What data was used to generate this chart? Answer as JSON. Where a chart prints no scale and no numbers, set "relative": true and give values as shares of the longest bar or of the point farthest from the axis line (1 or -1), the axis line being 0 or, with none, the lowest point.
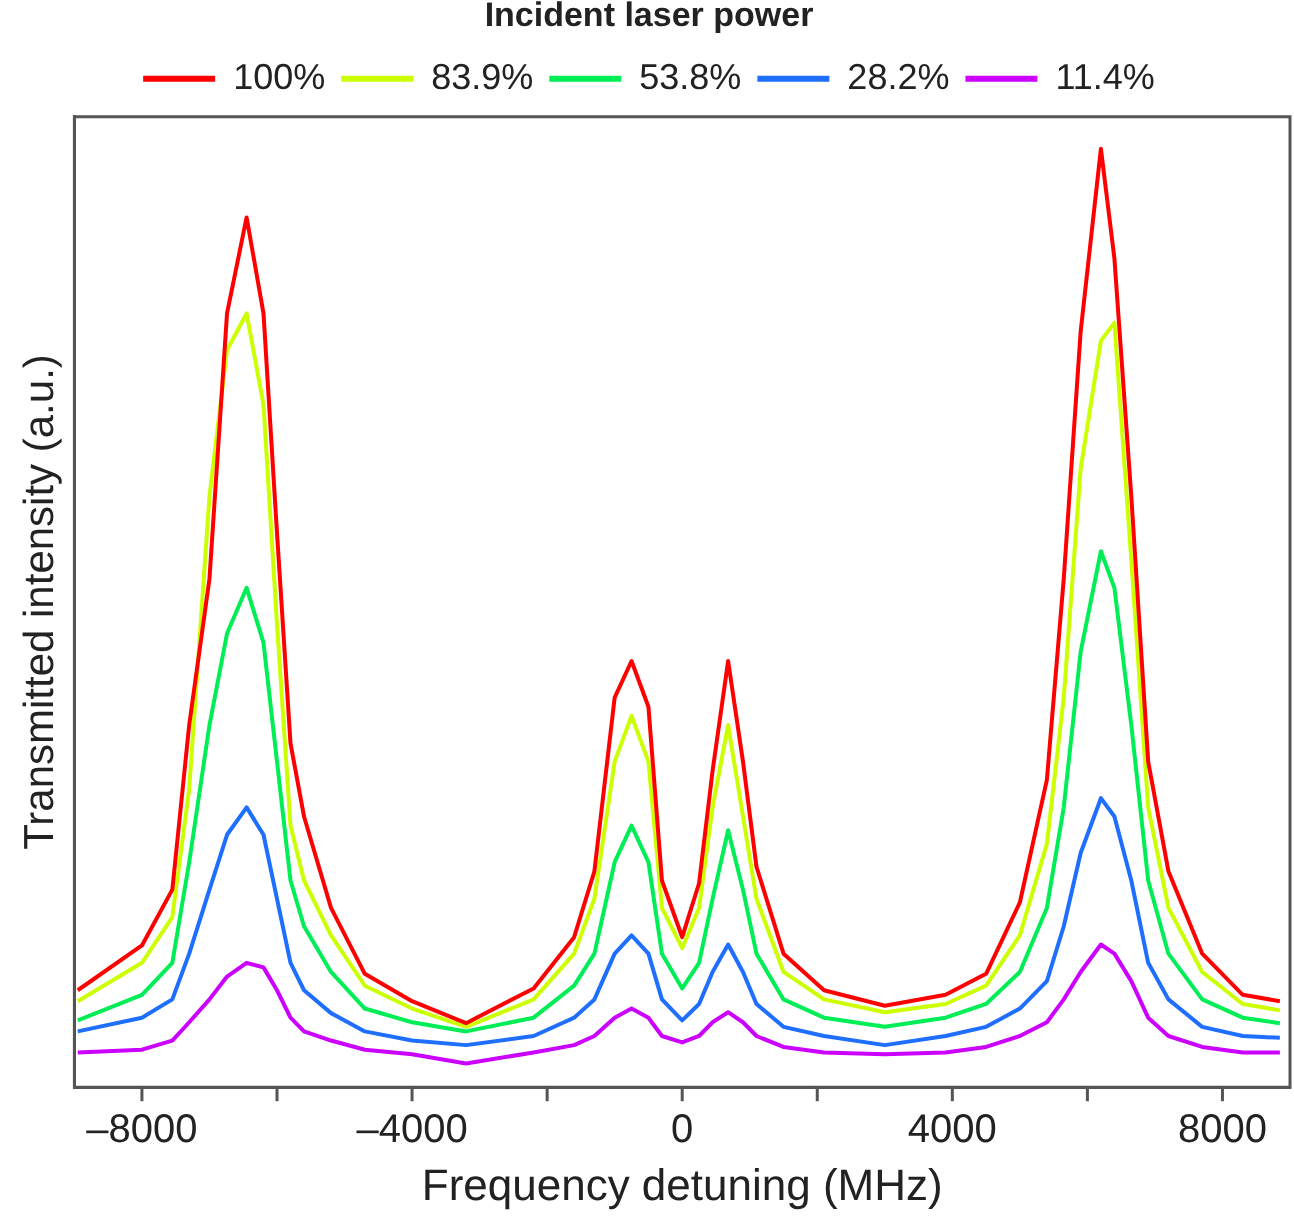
{
  "chart_data": {
    "type": "line",
    "legend_title": "Incident laser power",
    "xlabel": "Frequency detuning (MHz)",
    "ylabel": "Transmitted intensity (a.u.)",
    "relative": true,
    "legend": "top",
    "grid": false,
    "marker": "none",
    "line_style": "solid",
    "xlim": [
      -9000,
      9000
    ],
    "xticks": [
      {
        "value": -8000,
        "label": "–8000"
      },
      {
        "value": -6000,
        "label": null
      },
      {
        "value": -4000,
        "label": "–4000"
      },
      {
        "value": -2000,
        "label": null
      },
      0,
      {
        "value": 2000,
        "label": null
      },
      4000,
      {
        "value": 6000,
        "label": null
      },
      8000
    ],
    "x": [
      -8950,
      -8000,
      -7550,
      -7300,
      -7000,
      -6740,
      -6450,
      -6200,
      -6000,
      -5800,
      -5600,
      -5200,
      -4700,
      -4000,
      -3200,
      -2200,
      -1600,
      -1300,
      -1000,
      -750,
      -500,
      -300,
      0,
      250,
      450,
      680,
      900,
      1100,
      1500,
      2100,
      3000,
      3900,
      4500,
      5000,
      5400,
      5650,
      5900,
      6200,
      6400,
      6650,
      6900,
      7200,
      7700,
      8300,
      8850
    ],
    "series": [
      {
        "name": "100%",
        "color": "#ff0000",
        "values": [
          0.08,
          0.129,
          0.19,
          0.37,
          0.53,
          0.82,
          0.925,
          0.82,
          0.58,
          0.35,
          0.27,
          0.17,
          0.098,
          0.068,
          0.044,
          0.082,
          0.138,
          0.21,
          0.4,
          0.44,
          0.39,
          0.2,
          0.138,
          0.197,
          0.32,
          0.44,
          0.33,
          0.215,
          0.12,
          0.08,
          0.063,
          0.075,
          0.098,
          0.176,
          0.31,
          0.53,
          0.8,
          1.0,
          0.88,
          0.62,
          0.33,
          0.21,
          0.12,
          0.075,
          0.068
        ]
      },
      {
        "name": "83.9%",
        "color": "#ccff00",
        "values": [
          0.068,
          0.11,
          0.16,
          0.3,
          0.62,
          0.78,
          0.82,
          0.72,
          0.48,
          0.26,
          0.2,
          0.14,
          0.085,
          0.06,
          0.04,
          0.07,
          0.12,
          0.18,
          0.33,
          0.38,
          0.33,
          0.17,
          0.126,
          0.17,
          0.28,
          0.37,
          0.27,
          0.18,
          0.1,
          0.07,
          0.056,
          0.065,
          0.085,
          0.14,
          0.24,
          0.4,
          0.65,
          0.79,
          0.81,
          0.55,
          0.28,
          0.17,
          0.1,
          0.065,
          0.058
        ]
      },
      {
        "name": "53.8%",
        "color": "#00ee55",
        "values": [
          0.047,
          0.075,
          0.11,
          0.22,
          0.37,
          0.47,
          0.52,
          0.46,
          0.33,
          0.2,
          0.15,
          0.1,
          0.06,
          0.045,
          0.035,
          0.05,
          0.085,
          0.12,
          0.22,
          0.26,
          0.22,
          0.12,
          0.082,
          0.11,
          0.18,
          0.255,
          0.19,
          0.12,
          0.07,
          0.05,
          0.04,
          0.05,
          0.065,
          0.1,
          0.17,
          0.28,
          0.45,
          0.56,
          0.52,
          0.37,
          0.2,
          0.12,
          0.07,
          0.05,
          0.044
        ]
      },
      {
        "name": "28.2%",
        "color": "#1e6fff",
        "values": [
          0.035,
          0.05,
          0.07,
          0.12,
          0.19,
          0.25,
          0.28,
          0.25,
          0.18,
          0.11,
          0.08,
          0.055,
          0.035,
          0.025,
          0.02,
          0.03,
          0.05,
          0.07,
          0.12,
          0.14,
          0.12,
          0.07,
          0.047,
          0.065,
          0.1,
          0.13,
          0.1,
          0.065,
          0.04,
          0.03,
          0.02,
          0.03,
          0.04,
          0.06,
          0.09,
          0.15,
          0.23,
          0.29,
          0.27,
          0.2,
          0.11,
          0.07,
          0.04,
          0.03,
          0.028
        ]
      },
      {
        "name": "11.4%",
        "color": "#cc00ff",
        "values": [
          0.012,
          0.015,
          0.025,
          0.045,
          0.07,
          0.095,
          0.11,
          0.105,
          0.08,
          0.05,
          0.035,
          0.025,
          0.015,
          0.01,
          0,
          0.012,
          0.02,
          0.03,
          0.05,
          0.06,
          0.05,
          0.03,
          0.023,
          0.03,
          0.045,
          0.056,
          0.045,
          0.03,
          0.018,
          0.012,
          0.01,
          0.012,
          0.018,
          0.03,
          0.045,
          0.07,
          0.1,
          0.13,
          0.12,
          0.09,
          0.05,
          0.03,
          0.018,
          0.012,
          0.012
        ]
      }
    ]
  }
}
